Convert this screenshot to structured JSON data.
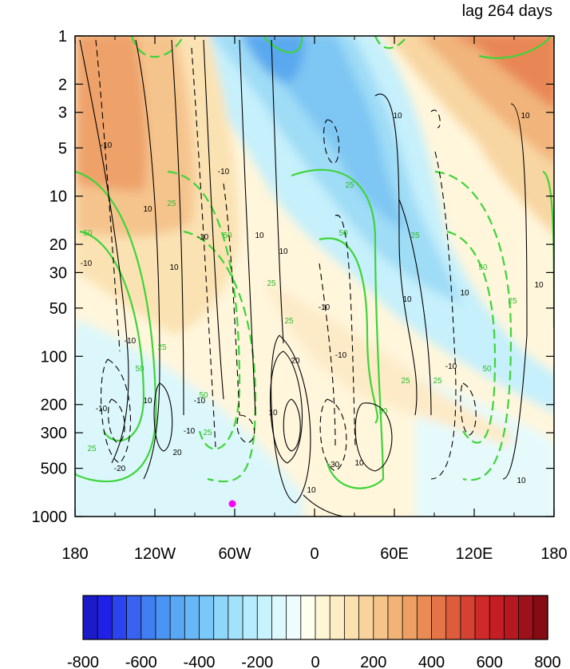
{
  "title_right": "lag 264 days",
  "chart_data": {
    "type": "heatmap",
    "title": "lag 264 days",
    "x_ticks": [
      "180",
      "120W",
      "60W",
      "0",
      "60E",
      "120E",
      "180"
    ],
    "y_ticks": [
      "1",
      "2",
      "3",
      "5",
      "10",
      "20",
      "30",
      "50",
      "100",
      "200",
      "300",
      "500",
      "1000"
    ],
    "y_scale": "log",
    "y_inverted": true,
    "ylim": [
      1000,
      1
    ],
    "xlim_degrees_east": [
      -180,
      180
    ],
    "colorbar": {
      "levels": [
        -800,
        -750,
        -700,
        -650,
        -600,
        -550,
        -500,
        -450,
        -400,
        -350,
        -300,
        -250,
        -200,
        -150,
        -100,
        -50,
        0,
        50,
        100,
        150,
        200,
        250,
        300,
        350,
        400,
        450,
        500,
        550,
        600,
        650,
        700,
        750,
        800
      ],
      "labels": [
        "-800",
        "-600",
        "-400",
        "-200",
        "0",
        "200",
        "400",
        "600",
        "800"
      ],
      "colors": [
        "#1b1bc8",
        "#2020e6",
        "#2a45f0",
        "#3763f0",
        "#3f7ff2",
        "#4a95f4",
        "#58a8f6",
        "#68b8f7",
        "#7ac8f9",
        "#8ed6fa",
        "#a2e2fb",
        "#b6ecfc",
        "#c8f3fd",
        "#dcf9fe",
        "#eefcfe",
        "#fffff0",
        "#fff6d6",
        "#fdedc4",
        "#fbe1b0",
        "#f8d39c",
        "#f5c488",
        "#f2b376",
        "#eea064",
        "#e98b54",
        "#e37448",
        "#dc5c3c",
        "#d44232",
        "#ce2a2a",
        "#c41e24",
        "#b41820",
        "#9c121a",
        "#850c14"
      ]
    },
    "contour_labels": [
      "-10",
      "10",
      "-20",
      "20",
      "-30",
      "25",
      "50"
    ],
    "marker": {
      "lon": -60,
      "level": 850,
      "color": "#ff00ff"
    }
  }
}
